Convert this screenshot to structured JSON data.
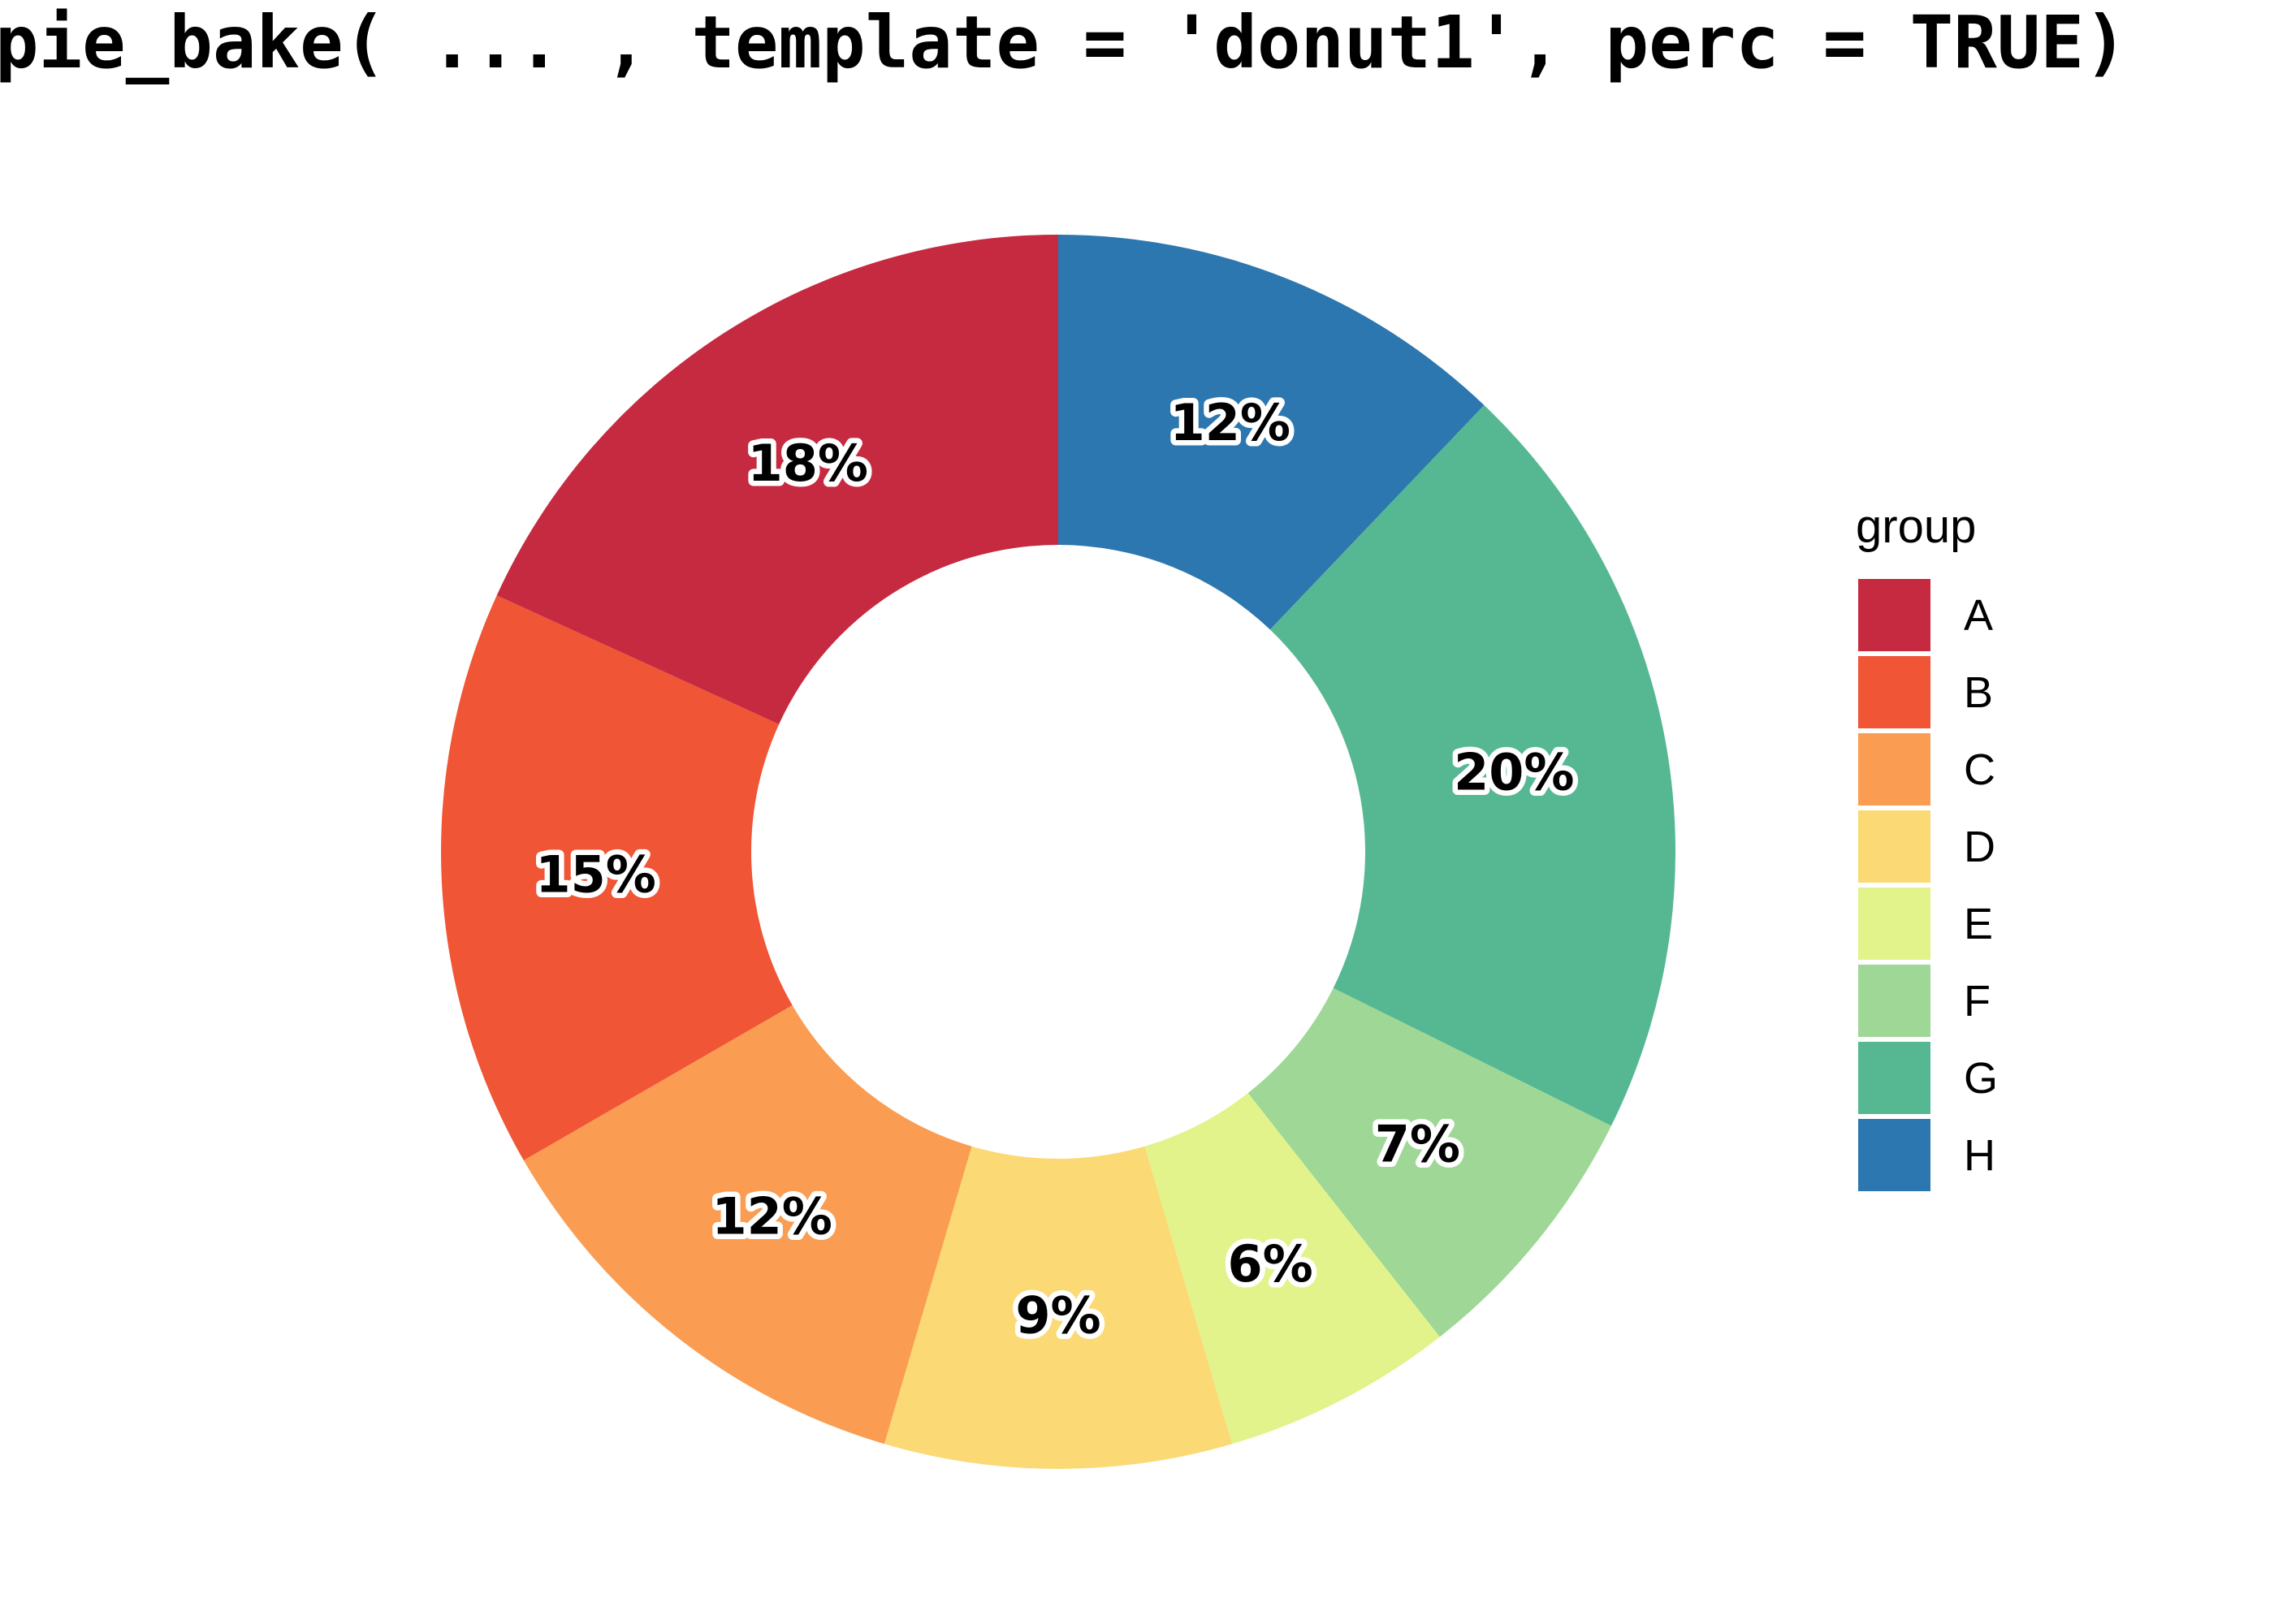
{
  "title": {
    "text": "pie_bake( ... , template = 'donut1', perc = TRUE)"
  },
  "legend": {
    "title": "group",
    "position": "right",
    "entries": [
      "A",
      "B",
      "C",
      "D",
      "E",
      "F",
      "G",
      "H"
    ]
  },
  "chart_data": {
    "type": "pie",
    "subtype": "donut",
    "title": "pie_bake( ... , template = 'donut1', perc = TRUE)",
    "categories": [
      "A",
      "B",
      "C",
      "D",
      "E",
      "F",
      "G",
      "H"
    ],
    "values": [
      18,
      15,
      12,
      9,
      6,
      7,
      20,
      12
    ],
    "labels": [
      "18%",
      "15%",
      "12%",
      "9%",
      "6%",
      "7%",
      "20%",
      "12%"
    ],
    "colors": [
      "#C62A41",
      "#F05535",
      "#FA9D52",
      "#FBD975",
      "#E2F38B",
      "#9ED796",
      "#56B893",
      "#2C77AF"
    ],
    "unit": "percent",
    "legend_title": "group",
    "legend_position": "right",
    "layout": {
      "start": "top",
      "first_category_direction": "counterclockwise",
      "donut_hole_ratio": 0.5,
      "labels_inside_ring": true,
      "label_halo_color": "#ffffff",
      "label_text_color": "#000000",
      "background": "#ffffff"
    }
  }
}
